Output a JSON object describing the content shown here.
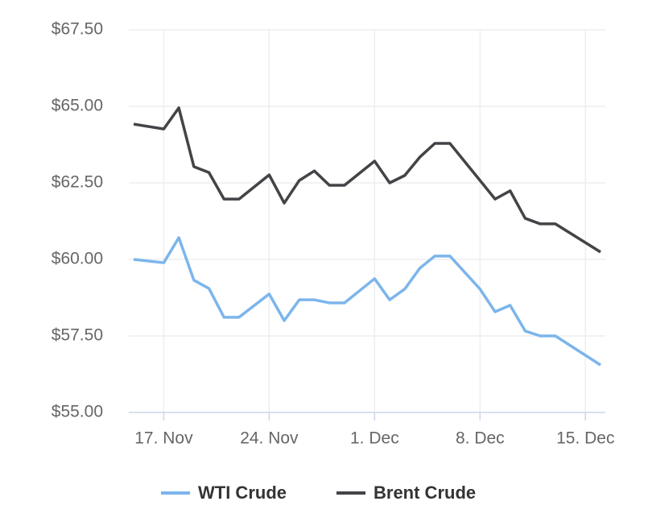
{
  "chart_data": {
    "type": "line",
    "x": [
      "11-15",
      "11-17",
      "11-18",
      "11-19",
      "11-20",
      "11-21",
      "11-22",
      "11-24",
      "11-25",
      "11-26",
      "11-27",
      "11-28",
      "11-29",
      "12-01",
      "12-02",
      "12-03",
      "12-04",
      "12-05",
      "12-06",
      "12-08",
      "12-09",
      "12-10",
      "12-11",
      "12-12",
      "12-13",
      "12-16"
    ],
    "series": [
      {
        "name": "WTI Crude",
        "color": "#7cb5ec",
        "values": [
          60.0,
          59.89,
          60.71,
          59.32,
          59.05,
          58.11,
          58.11,
          58.87,
          58.0,
          58.68,
          58.68,
          58.58,
          58.58,
          59.37,
          58.68,
          59.03,
          59.71,
          60.11,
          60.11,
          59.03,
          58.29,
          58.5,
          57.66,
          57.5,
          57.5,
          56.55
        ]
      },
      {
        "name": "Brent Crude",
        "color": "#434348",
        "values": [
          64.42,
          64.26,
          64.95,
          63.03,
          62.84,
          61.97,
          61.97,
          62.76,
          61.84,
          62.58,
          62.89,
          62.42,
          62.42,
          63.21,
          62.5,
          62.74,
          63.34,
          63.79,
          63.79,
          62.58,
          61.97,
          62.24,
          61.34,
          61.16,
          61.16,
          60.24
        ]
      }
    ],
    "xlim": [
      "11-15",
      "12-16"
    ],
    "xticks": [
      {
        "value": "11-17",
        "label": "17. Nov"
      },
      {
        "value": "11-24",
        "label": "24. Nov"
      },
      {
        "value": "12-01",
        "label": "1. Dec"
      },
      {
        "value": "12-08",
        "label": "8. Dec"
      },
      {
        "value": "12-15",
        "label": "15. Dec"
      }
    ],
    "ylim": [
      55,
      67.5
    ],
    "yticks": [
      {
        "value": 55,
        "label": "$55.00"
      },
      {
        "value": 57.5,
        "label": "$57.50"
      },
      {
        "value": 60,
        "label": "$60.00"
      },
      {
        "value": 62.5,
        "label": "$62.50"
      },
      {
        "value": 65,
        "label": "$65.00"
      },
      {
        "value": 67.5,
        "label": "$67.50"
      }
    ],
    "grid": true,
    "legend": "bottom"
  }
}
